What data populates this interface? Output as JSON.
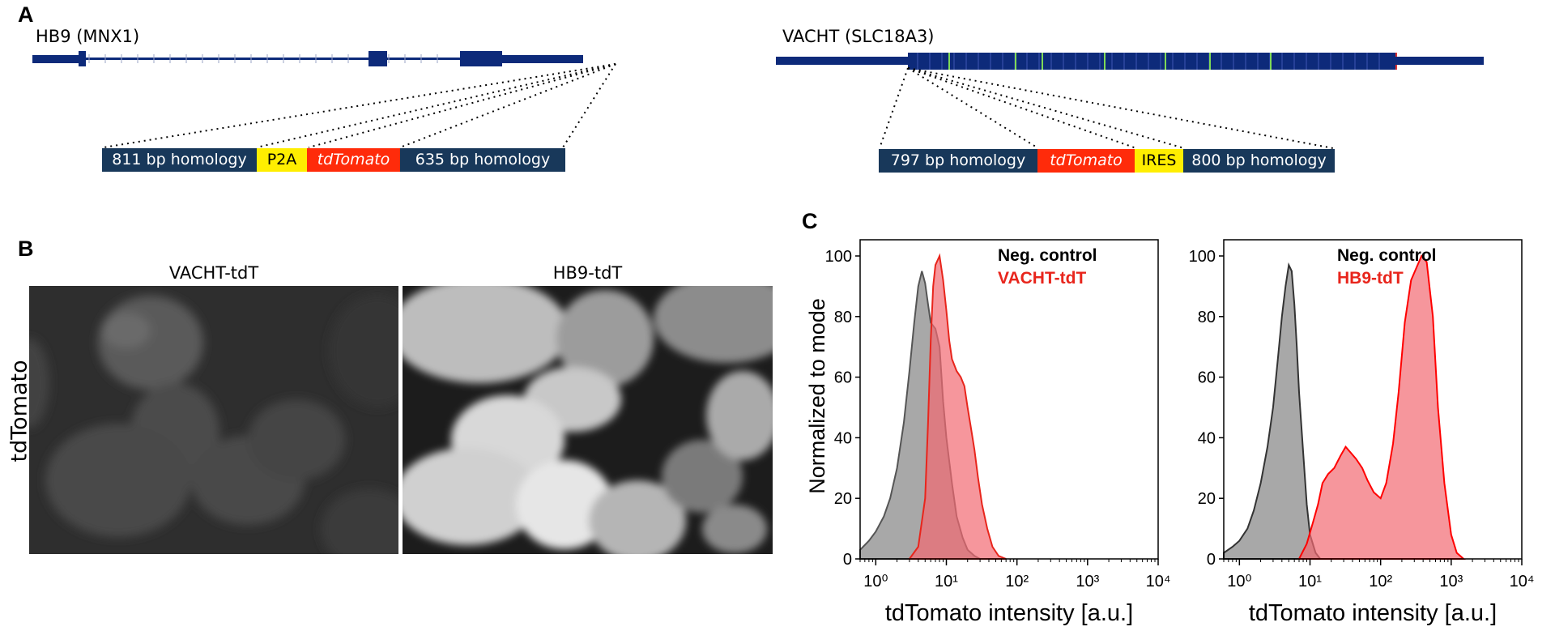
{
  "panels": {
    "a": "A",
    "b": "B",
    "c": "C"
  },
  "panel_a": {
    "hb9": {
      "gene_label": "HB9 (MNX1)",
      "construct": [
        {
          "label": "811 bp homology",
          "kind": "homology"
        },
        {
          "label": "P2A",
          "kind": "yellow"
        },
        {
          "label": "tdTomato",
          "kind": "red"
        },
        {
          "label": "635 bp homology",
          "kind": "homology"
        }
      ]
    },
    "vacht": {
      "gene_label": "VACHT (SLC18A3)",
      "construct": [
        {
          "label": "797 bp homology",
          "kind": "homology"
        },
        {
          "label": "tdTomato",
          "kind": "red"
        },
        {
          "label": "IRES",
          "kind": "yellow"
        },
        {
          "label": "800 bp homology",
          "kind": "homology"
        }
      ]
    },
    "colors": {
      "gene": "#0d2a7a",
      "homology": "#18385a",
      "yellow": "#ffee00",
      "red": "#ff2b0a",
      "exon_mark": "#7ed957"
    }
  },
  "panel_b": {
    "row_label": "tdTomato",
    "columns": [
      "VACHT-tdT",
      "HB9-tdT"
    ]
  },
  "chart_data": [
    {
      "type": "area",
      "title": "",
      "xlabel": "tdTomato intensity [a.u.]",
      "ylabel": "Normalized to mode",
      "x_scale": "log",
      "xlim": [
        0.6,
        10000
      ],
      "ylim": [
        0,
        100
      ],
      "x_ticks": [
        1,
        10,
        100,
        1000,
        10000
      ],
      "x_tick_labels": [
        "10⁰",
        "10¹",
        "10²",
        "10³",
        "10⁴"
      ],
      "y_ticks": [
        0,
        20,
        40,
        60,
        80,
        100
      ],
      "legend_position": "top-right",
      "series": [
        {
          "name": "Neg. control",
          "color": "#555555",
          "fill": "#999999",
          "x": [
            0.6,
            0.8,
            1,
            1.3,
            1.6,
            2,
            2.5,
            3,
            3.5,
            4,
            4.5,
            5,
            5.5,
            6,
            7,
            8,
            9,
            10,
            12,
            14,
            17,
            20,
            25,
            30
          ],
          "y": [
            3,
            6,
            9,
            14,
            20,
            30,
            45,
            62,
            78,
            90,
            95,
            91,
            84,
            78,
            76,
            70,
            52,
            40,
            25,
            14,
            7,
            3,
            1,
            0
          ]
        },
        {
          "name": "VACHT-tdT",
          "color": "#e8251c",
          "fill": "#f26a72",
          "x": [
            3,
            4,
            5,
            5.5,
            6,
            6.5,
            7,
            8,
            9,
            10,
            11,
            12,
            14,
            16,
            18,
            20,
            22,
            25,
            28,
            32,
            38,
            45,
            55,
            70
          ],
          "y": [
            0,
            4,
            20,
            45,
            72,
            90,
            97,
            100,
            92,
            82,
            72,
            66,
            62,
            60,
            57,
            50,
            44,
            36,
            27,
            18,
            10,
            4,
            1,
            0
          ]
        }
      ]
    },
    {
      "type": "area",
      "title": "",
      "xlabel": "tdTomato intensity [a.u.]",
      "ylabel": "",
      "x_scale": "log",
      "xlim": [
        0.6,
        10000
      ],
      "ylim": [
        0,
        100
      ],
      "x_ticks": [
        1,
        10,
        100,
        1000,
        10000
      ],
      "x_tick_labels": [
        "10⁰",
        "10¹",
        "10²",
        "10³",
        "10⁴"
      ],
      "y_ticks": [
        0,
        20,
        40,
        60,
        80,
        100
      ],
      "legend_position": "top-right",
      "series": [
        {
          "name": "Neg. control",
          "color": "#333333",
          "fill": "#999999",
          "x": [
            0.6,
            0.8,
            1,
            1.3,
            1.6,
            2,
            2.5,
            3,
            3.5,
            4,
            4.5,
            5,
            5.5,
            6,
            6.5,
            7,
            8,
            9,
            10,
            12,
            14
          ],
          "y": [
            2,
            4,
            6,
            10,
            16,
            25,
            37,
            50,
            66,
            80,
            90,
            97,
            95,
            84,
            70,
            55,
            35,
            18,
            8,
            2,
            0
          ]
        },
        {
          "name": "HB9-tdT",
          "color": "#ff0000",
          "fill": "#f26a72",
          "x": [
            7,
            9,
            11,
            13,
            15,
            18,
            22,
            27,
            32,
            38,
            45,
            55,
            65,
            80,
            100,
            120,
            150,
            180,
            220,
            270,
            320,
            380,
            450,
            550,
            650,
            800,
            1000,
            1200,
            1500
          ],
          "y": [
            0,
            5,
            12,
            18,
            25,
            28,
            30,
            34,
            37,
            35,
            33,
            30,
            26,
            22,
            20,
            25,
            38,
            55,
            78,
            92,
            96,
            100,
            98,
            80,
            50,
            25,
            8,
            2,
            0
          ]
        }
      ]
    }
  ]
}
